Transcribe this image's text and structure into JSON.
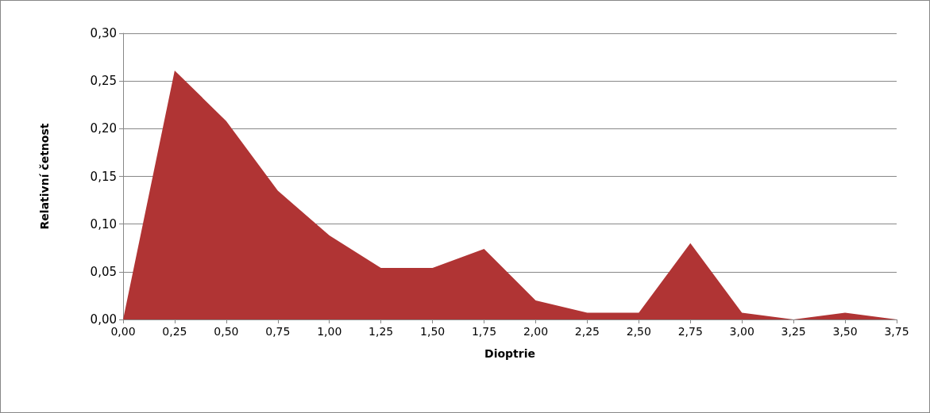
{
  "chart_data": {
    "type": "area",
    "xlabel": "Dioptrie",
    "ylabel": "Relativní četnost",
    "categories": [
      "0,00",
      "0,25",
      "0,50",
      "0,75",
      "1,00",
      "1,25",
      "1,50",
      "1,75",
      "2,00",
      "2,25",
      "2,50",
      "2,75",
      "3,00",
      "3,25",
      "3,50",
      "3,75"
    ],
    "series": [
      {
        "color": "#b03434",
        "values": [
          0,
          0.261,
          0.208,
          0.135,
          0.088,
          0.054,
          0.054,
          0.074,
          0.02,
          0.007,
          0.007,
          0.08,
          0.007,
          0,
          0.007,
          0
        ]
      }
    ],
    "ylim": [
      0,
      0.3
    ],
    "yticks": [
      {
        "value": 0,
        "label": "0,00"
      },
      {
        "value": 0.05,
        "label": "0,05"
      },
      {
        "value": 0.1,
        "label": "0,10"
      },
      {
        "value": 0.15,
        "label": "0,15"
      },
      {
        "value": 0.2,
        "label": "0,20"
      },
      {
        "value": 0.25,
        "label": "0,25"
      },
      {
        "value": 0.3,
        "label": "0,30"
      }
    ],
    "grid": "y",
    "marker": "none"
  }
}
